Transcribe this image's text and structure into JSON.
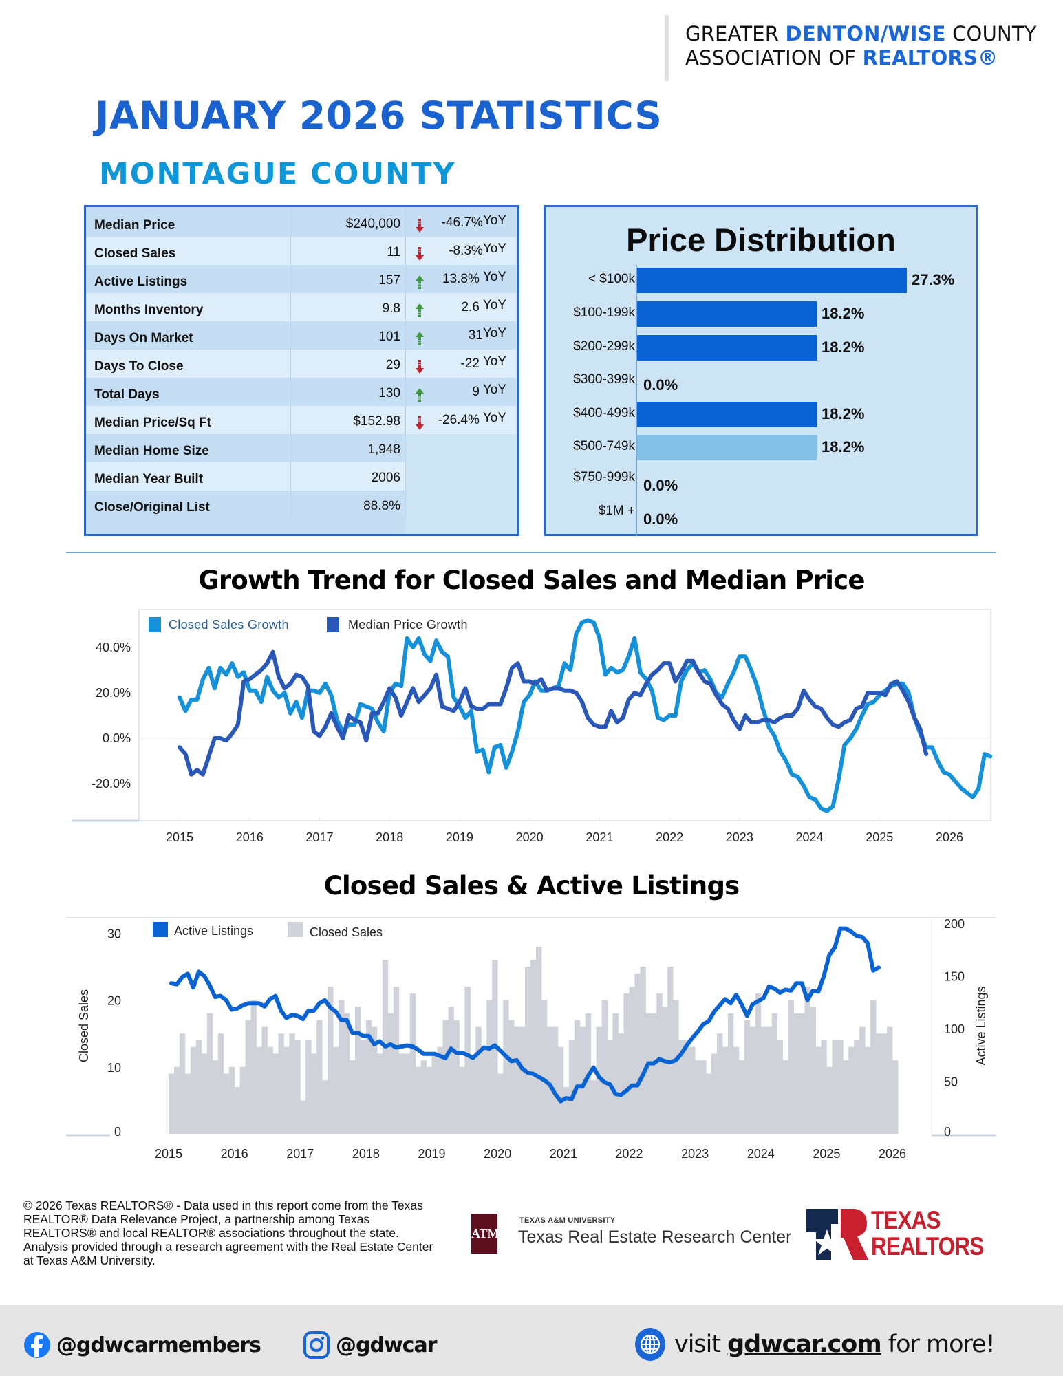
{
  "header": {
    "org_line1_a": "GREATER ",
    "org_line1_b": "DENTON/WISE",
    "org_line1_c": " COUNTY",
    "org_line2_a": "ASSOCIATION OF ",
    "org_line2_b": "REALTORS®",
    "title": "JANUARY 2026 STATISTICS",
    "county": "MONTAGUE COUNTY"
  },
  "colors": {
    "brand_blue": "#1a62d0",
    "county_blue": "#0d96d8",
    "down_arrow": "#c42131",
    "up_arrow": "#3f9a3f",
    "bar_dark": "#0a63d3",
    "bar_light": "#84c0e6",
    "closed_sales_growth": "#1591d9",
    "median_price_growth": "#2a58b8",
    "active_listings": "#0a63d3",
    "closed_sales_bar": "#cfd3d9"
  },
  "stats": [
    {
      "label": "Median Price",
      "value": "$240,000",
      "trend": "down",
      "yoy": "-46.7%",
      "suffix": "YoY"
    },
    {
      "label": "Closed Sales",
      "value": "11",
      "trend": "down",
      "yoy": "-8.3%",
      "suffix": "YoY"
    },
    {
      "label": "Active Listings",
      "value": "157",
      "trend": "up",
      "yoy": "13.8% ",
      "suffix": "YoY"
    },
    {
      "label": "Months Inventory",
      "value": "9.8",
      "trend": "up",
      "yoy": "2.6 ",
      "suffix": "YoY"
    },
    {
      "label": "Days On Market",
      "value": "101",
      "trend": "up",
      "yoy": "31",
      "suffix": "YoY"
    },
    {
      "label": "Days To Close",
      "value": "29",
      "trend": "down",
      "yoy": "-22 ",
      "suffix": "YoY"
    },
    {
      "label": "Total Days",
      "value": "130",
      "trend": "up",
      "yoy": "9 ",
      "suffix": "YoY"
    },
    {
      "label": "Median Price/Sq Ft",
      "value": "$152.98",
      "trend": "down",
      "yoy": "-26.4% ",
      "suffix": "YoY"
    },
    {
      "label": "Median Home Size",
      "value": "1,948",
      "trend": "",
      "yoy": "",
      "suffix": ""
    },
    {
      "label": "Median Year Built",
      "value": "2006",
      "trend": "",
      "yoy": "",
      "suffix": ""
    },
    {
      "label": "Close/Original List",
      "value": "88.8%",
      "trend": "",
      "yoy": "",
      "suffix": ""
    }
  ],
  "chart_data": [
    {
      "type": "bar",
      "orientation": "horizontal",
      "title": "Price Distribution",
      "categories": [
        "< $100k",
        "$100-199k",
        "$200-299k",
        "$300-399k",
        "$400-499k",
        "$500-749k",
        "$750-999k",
        "$1M +"
      ],
      "values": [
        27.3,
        18.2,
        18.2,
        0.0,
        18.2,
        18.2,
        0.0,
        0.0
      ],
      "labels": [
        "27.3%",
        "18.2%",
        "18.2%",
        "0.0%",
        "18.2%",
        "18.2%",
        "0.0%",
        "0.0%"
      ],
      "highlight_index": 5,
      "xlim": [
        0,
        27.3
      ]
    },
    {
      "type": "line",
      "title": "Growth Trend for Closed Sales and Median Price",
      "x_start": "2015-01",
      "x_frequency": "monthly",
      "x_ticks": [
        "2015",
        "2016",
        "2017",
        "2018",
        "2019",
        "2020",
        "2021",
        "2022",
        "2023",
        "2024",
        "2025",
        "2026"
      ],
      "y_ticks": [
        "40.0%",
        "20.0%",
        "0.0%",
        "-20.0%"
      ],
      "y_tick_values": [
        40,
        20,
        0,
        -20
      ],
      "ylim": [
        -35,
        50
      ],
      "legend": "top-left",
      "series": [
        {
          "name": "Closed Sales Growth",
          "values": [
            18,
            12,
            17,
            17,
            26,
            31,
            22,
            31,
            28,
            33,
            27,
            29,
            21,
            21,
            16,
            27,
            21,
            18,
            20,
            11,
            16,
            9,
            21,
            21,
            20,
            24,
            19,
            8,
            3,
            6,
            6,
            15,
            14,
            13,
            7,
            3,
            20,
            24,
            23,
            44,
            40,
            44,
            37,
            34,
            43,
            38,
            36,
            18,
            14,
            9,
            12,
            -6,
            -5,
            -15,
            -4,
            -3,
            -13,
            -6,
            3,
            16,
            19,
            25,
            21,
            21,
            22,
            23,
            33,
            30,
            46,
            51,
            52,
            51,
            44,
            28,
            31,
            29,
            30,
            36,
            44,
            29,
            26,
            21,
            9,
            8,
            10,
            10,
            25,
            30,
            33,
            29,
            30,
            26,
            20,
            18,
            24,
            29,
            36,
            36,
            30,
            23,
            13,
            5,
            1,
            -6,
            -10,
            -16,
            -17,
            -21,
            -26,
            -27,
            -31,
            -32,
            -30,
            -18,
            -3,
            0,
            4,
            10,
            15,
            16,
            19,
            21,
            23,
            24,
            24,
            20,
            9,
            2,
            -4,
            -4,
            -10,
            -15,
            -16,
            -19,
            -22,
            -24,
            -26,
            -22,
            -7,
            -8
          ]
        },
        {
          "name": "Median Price Growth",
          "values": [
            -4,
            -7,
            -16,
            -14,
            -16,
            -8,
            0,
            0,
            -1,
            2,
            6,
            25,
            26,
            28,
            30,
            33,
            38,
            27,
            22,
            24,
            28,
            27,
            23,
            3,
            1,
            5,
            11,
            5,
            0,
            10,
            8,
            7,
            -1,
            11,
            11,
            16,
            22,
            18,
            10,
            16,
            22,
            16,
            19,
            22,
            28,
            14,
            13,
            12,
            16,
            22,
            14,
            13,
            13,
            15,
            15,
            15,
            22,
            31,
            33,
            25,
            25,
            24,
            26,
            21,
            22,
            22,
            21,
            21,
            20,
            16,
            9,
            6,
            5,
            5,
            12,
            7,
            9,
            17,
            20,
            19,
            24,
            28,
            30,
            33,
            33,
            25,
            29,
            34,
            34,
            29,
            25,
            24,
            19,
            15,
            13,
            8,
            4,
            10,
            7,
            7,
            8,
            8,
            7,
            9,
            10,
            10,
            13,
            21,
            17,
            14,
            13,
            9,
            6,
            5,
            7,
            8,
            13,
            14,
            20,
            20,
            20,
            19,
            24,
            25,
            21,
            16,
            9,
            4,
            -7
          ]
        }
      ]
    },
    {
      "type": "bar+line",
      "title": "Closed Sales & Active Listings",
      "x_start": "2015-01",
      "x_frequency": "monthly",
      "x_ticks": [
        "2015",
        "2016",
        "2017",
        "2018",
        "2019",
        "2020",
        "2021",
        "2022",
        "2023",
        "2024",
        "2025",
        "2026"
      ],
      "legend": "top-left",
      "y_left": {
        "label": "Closed Sales",
        "ticks": [
          0,
          10,
          20,
          30
        ],
        "ylim": [
          0,
          33
        ]
      },
      "y_right": {
        "label": "Active Listings",
        "ticks": [
          0,
          50,
          100,
          150,
          200
        ],
        "ylim": [
          0,
          203
        ]
      },
      "series": [
        {
          "name": "Active Listings",
          "type": "line",
          "axis": "right",
          "values": [
            143,
            142,
            149,
            152,
            139,
            154,
            150,
            141,
            130,
            131,
            127,
            118,
            119,
            122,
            124,
            124,
            124,
            121,
            128,
            131,
            117,
            110,
            113,
            112,
            109,
            117,
            117,
            124,
            127,
            120,
            116,
            108,
            108,
            96,
            96,
            93,
            93,
            85,
            88,
            83,
            85,
            82,
            83,
            84,
            83,
            80,
            76,
            76,
            76,
            74,
            72,
            81,
            77,
            77,
            75,
            72,
            77,
            82,
            81,
            84,
            79,
            74,
            69,
            70,
            62,
            58,
            57,
            54,
            51,
            47,
            38,
            31,
            34,
            33,
            45,
            45,
            55,
            63,
            54,
            49,
            47,
            38,
            37,
            41,
            46,
            46,
            56,
            67,
            67,
            71,
            69,
            68,
            70,
            76,
            84,
            91,
            97,
            104,
            107,
            116,
            122,
            128,
            124,
            132,
            123,
            112,
            123,
            126,
            129,
            140,
            138,
            134,
            137,
            136,
            143,
            143,
            127,
            136,
            135,
            150,
            170,
            177,
            195,
            195,
            192,
            188,
            187,
            181,
            155,
            158
          ]
        },
        {
          "name": "Closed Sales",
          "type": "bar",
          "axis": "left",
          "values": [
            9,
            10,
            15,
            9,
            13,
            14,
            12,
            18,
            11,
            15,
            9,
            10,
            7,
            10,
            17,
            20,
            13,
            16,
            13,
            12,
            15,
            13,
            15,
            14,
            5,
            14,
            12,
            17,
            8,
            22,
            13,
            20,
            18,
            11,
            19,
            14,
            17,
            16,
            12,
            26,
            18,
            22,
            12,
            12,
            21,
            10,
            11,
            10,
            12,
            13,
            17,
            19,
            17,
            10,
            22,
            11,
            16,
            13,
            20,
            26,
            9,
            20,
            17,
            16,
            16,
            25,
            26,
            28,
            20,
            16,
            16,
            13,
            7,
            14,
            17,
            16,
            18,
            8,
            16,
            20,
            14,
            18,
            15,
            21,
            22,
            24,
            25,
            18,
            18,
            21,
            19,
            25,
            20,
            14,
            14,
            13,
            11,
            11,
            9,
            12,
            15,
            13,
            18,
            13,
            11,
            17,
            16,
            21,
            16,
            16,
            18,
            14,
            11,
            20,
            18,
            18,
            22,
            19,
            13,
            14,
            10,
            14,
            14,
            11,
            13,
            14,
            16,
            13,
            20,
            15,
            15,
            16,
            11
          ]
        }
      ]
    }
  ],
  "growth_legend": {
    "closed": "Closed Sales Growth",
    "median": "Median Price Growth"
  },
  "listings_legend": {
    "active": "Active Listings",
    "closed": "Closed Sales"
  },
  "footer": {
    "disclaimer": "© 2026 Texas REALTORS® - Data used in this report come from the Texas REALTOR® Data Relevance Project, a partnership among Texas REALTORS® and local REALTOR® associations throughout the state. Analysis provided through a research agreement with the Real Estate Center at Texas A&M University.",
    "tamu_small": "TEXAS A&M UNIVERSITY",
    "tamu_name": "Texas Real Estate Research Center",
    "tamu_mark": "ATM",
    "txr_line1": "TEXAS",
    "txr_line2": "REALTORS",
    "facebook": "@gdwcarmembers",
    "instagram": "@gdwcar",
    "visit_prefix": "visit",
    "visit_site": "gdwcar.com",
    "visit_suffix": "for more!"
  }
}
